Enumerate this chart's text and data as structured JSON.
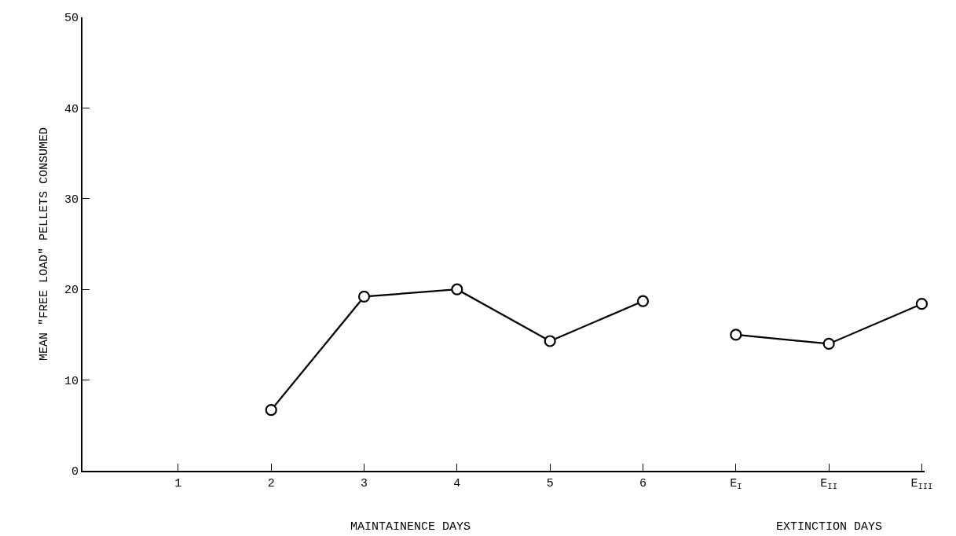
{
  "chart_data": {
    "type": "line",
    "xlabel": "MAINTAINENCE DAYS",
    "ylabel": "MEAN \"FREE LOAD\" PELLETS CONSUMED",
    "categories": [
      "1",
      "2",
      "3",
      "4",
      "5",
      "6",
      "E$_{I}$",
      "E$_{II}$",
      "E$_{III}$"
    ],
    "series": [
      {
        "color": "#000000",
        "values": [
          null,
          6.7,
          19.2,
          20.0,
          14.3,
          18.7,
          null,
          null,
          null
        ]
      },
      {
        "color": "#000000",
        "values": [
          null,
          null,
          null,
          null,
          null,
          null,
          15.0,
          14.0,
          18.4
        ]
      }
    ],
    "annotations": [
      "EXTINCTION DAYS"
    ],
    "ylim": [
      0,
      50
    ],
    "yticks": [
      0,
      10,
      20,
      30,
      40,
      50
    ],
    "marker": "circle",
    "line_style": "solid"
  }
}
